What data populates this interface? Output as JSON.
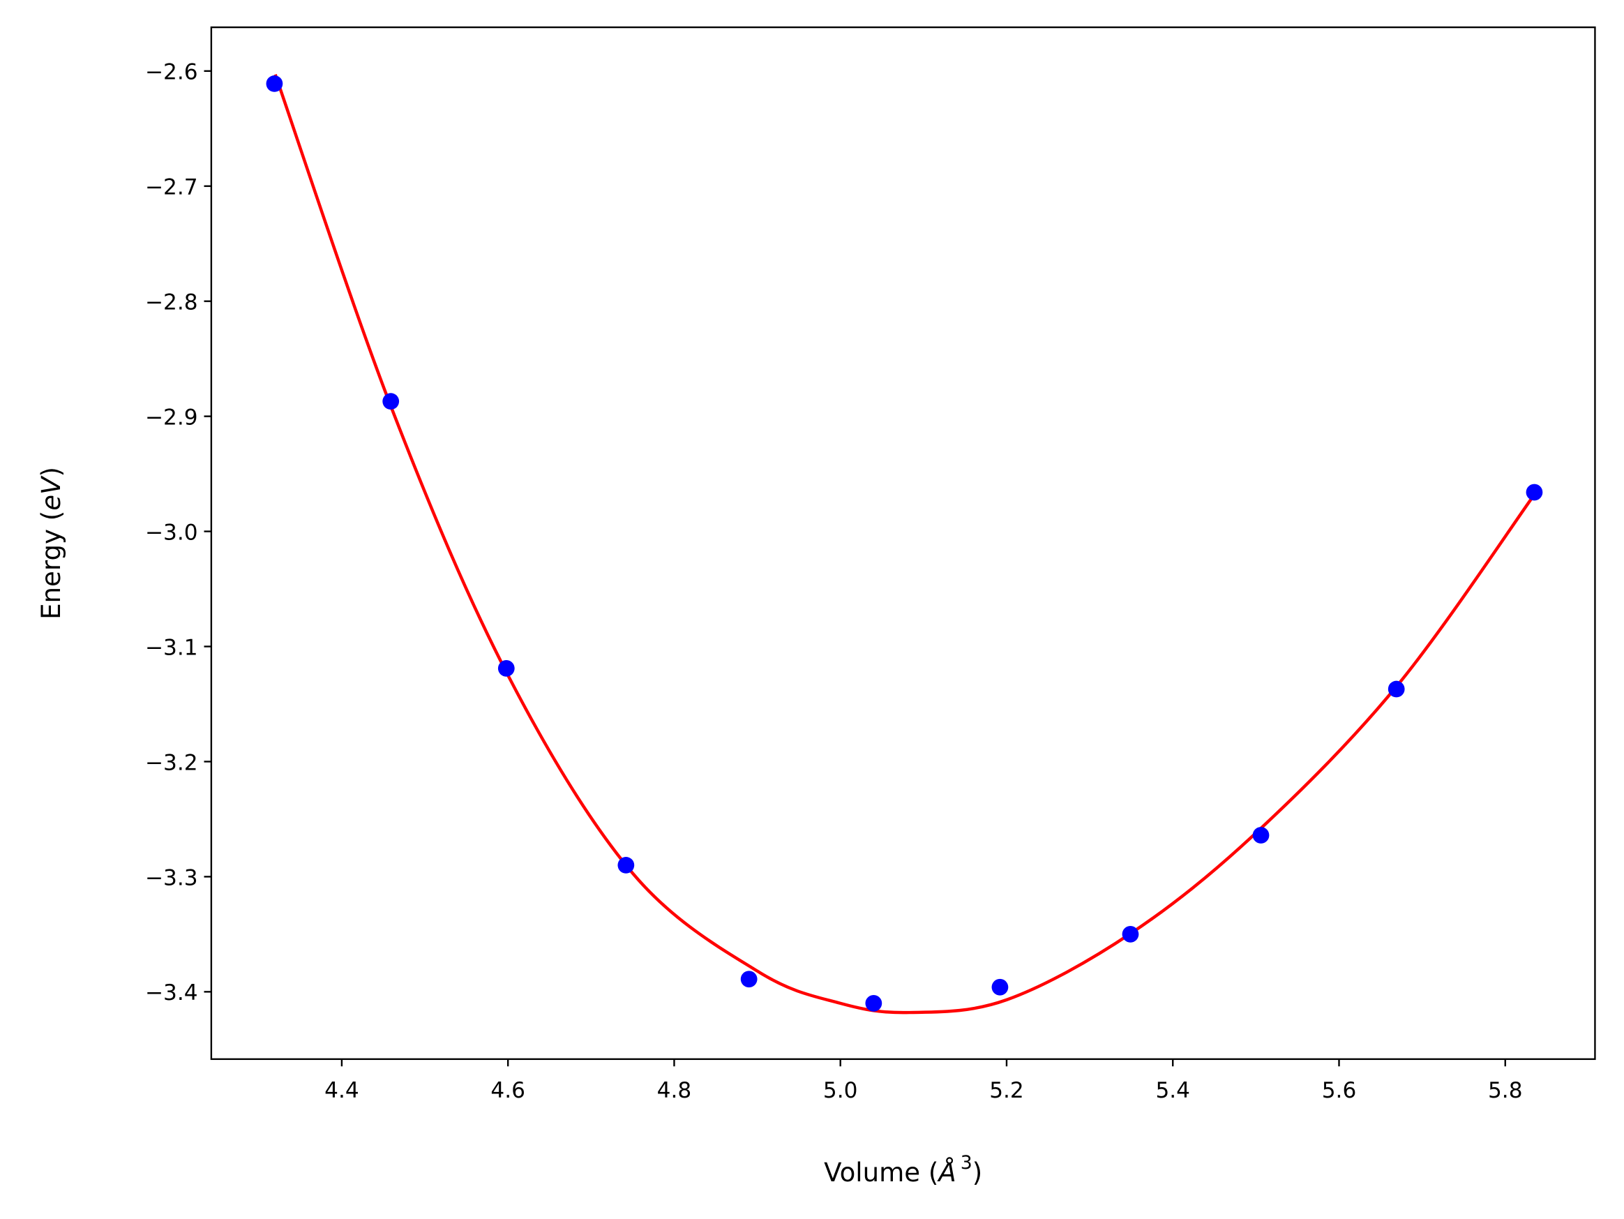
{
  "chart_data": {
    "type": "scatter",
    "title": "",
    "xlabel": "Volume ($\\AA^3$)",
    "xlabel_parts": [
      "Volume (",
      "Å",
      "3",
      ")"
    ],
    "ylabel_parts": [
      "Energy (",
      "eV",
      ")"
    ],
    "xlim": [
      4.243,
      5.908
    ],
    "ylim": [
      -3.4585,
      -2.562
    ],
    "xticks": [
      "4.4",
      "4.6",
      "4.8",
      "5.0",
      "5.2",
      "5.4",
      "5.6",
      "5.8"
    ],
    "yticks": [
      "−2.6",
      "−2.7",
      "−2.8",
      "−2.9",
      "−3.0",
      "−3.1",
      "−3.2",
      "−3.3",
      "−3.4"
    ],
    "xtick_values": [
      4.4,
      4.6,
      4.8,
      5.0,
      5.2,
      5.4,
      5.6,
      5.8
    ],
    "ytick_values": [
      -2.6,
      -2.7,
      -2.8,
      -2.9,
      -3.0,
      -3.1,
      -3.2,
      -3.3,
      -3.4
    ],
    "grid": false,
    "series": [
      {
        "kind": "scatter",
        "color": "#0000ff",
        "x": [
          4.319,
          4.459,
          4.598,
          4.742,
          4.89,
          5.04,
          5.192,
          5.349,
          5.506,
          5.669,
          5.835
        ],
        "y": [
          -2.611,
          -2.887,
          -3.119,
          -3.29,
          -3.389,
          -3.41,
          -3.396,
          -3.35,
          -3.264,
          -3.137,
          -2.966
        ]
      },
      {
        "kind": "line",
        "color": "#ff0000",
        "x": [
          4.32,
          4.46,
          4.6,
          4.75,
          4.9,
          5.0,
          5.083,
          5.2,
          5.35,
          5.5,
          5.67,
          5.835
        ],
        "y": [
          -2.603,
          -2.893,
          -3.125,
          -3.297,
          -3.382,
          -3.41,
          -3.418,
          -3.407,
          -3.349,
          -3.262,
          -3.134,
          -2.968
        ]
      }
    ]
  }
}
